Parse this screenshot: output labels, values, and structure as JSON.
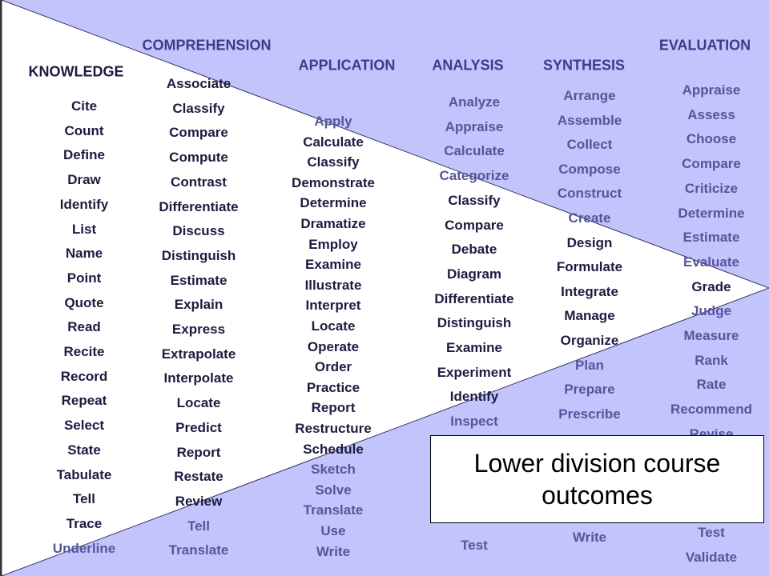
{
  "columns": [
    {
      "header": "KNOWLEDGE",
      "words": [
        "Cite",
        "Count",
        "Define",
        "Draw",
        "Identify",
        "List",
        "Name",
        "Point",
        "Quote",
        "Read",
        "Recite",
        "Record",
        "Repeat",
        "Select",
        "State",
        "Tabulate",
        "Tell",
        "Trace",
        "Underline"
      ]
    },
    {
      "header": "COMPREHENSION",
      "words": [
        "Associate",
        "Classify",
        "Compare",
        "Compute",
        "Contrast",
        "Differentiate",
        "Discuss",
        "Distinguish",
        "Estimate",
        "Explain",
        "Express",
        "Extrapolate",
        "Interpolate",
        "Locate",
        "Predict",
        "Report",
        "Restate",
        "Review",
        "Tell",
        "Translate"
      ]
    },
    {
      "header": "APPLICATION",
      "words": [
        "Apply",
        "Calculate",
        "Classify",
        "Demonstrate",
        "Determine",
        "Dramatize",
        "Employ",
        "Examine",
        "Illustrate",
        "Interpret",
        "Locate",
        "Operate",
        "Order",
        "Practice",
        "Report",
        "Restructure",
        "Schedule",
        "Sketch",
        "Solve",
        "Translate",
        "Use",
        "Write"
      ]
    },
    {
      "header": "ANALYSIS",
      "words": [
        "Analyze",
        "Appraise",
        "Calculate",
        "Categorize",
        "Classify",
        "Compare",
        "Debate",
        "Diagram",
        "Differentiate",
        "Distinguish",
        "Examine",
        "Experiment",
        "Identify",
        "Inspect"
      ],
      "last": "Test"
    },
    {
      "header": "SYNTHESIS",
      "words": [
        "Arrange",
        "Assemble",
        "Collect",
        "Compose",
        "Construct",
        "Create",
        "Design",
        "Formulate",
        "Integrate",
        "Manage",
        "Organize",
        "Plan",
        "Prepare",
        "Prescribe"
      ],
      "last": "Write"
    },
    {
      "header": "EVALUATION",
      "words": [
        "Appraise",
        "Assess",
        "Choose",
        "Compare",
        "Criticize",
        "Determine",
        "Estimate",
        "Evaluate",
        "Grade",
        "Judge",
        "Measure",
        "Rank",
        "Rate",
        "Recommend",
        "Revise",
        "Test",
        "Validate"
      ]
    }
  ],
  "callout": "Lower division course outcomes"
}
